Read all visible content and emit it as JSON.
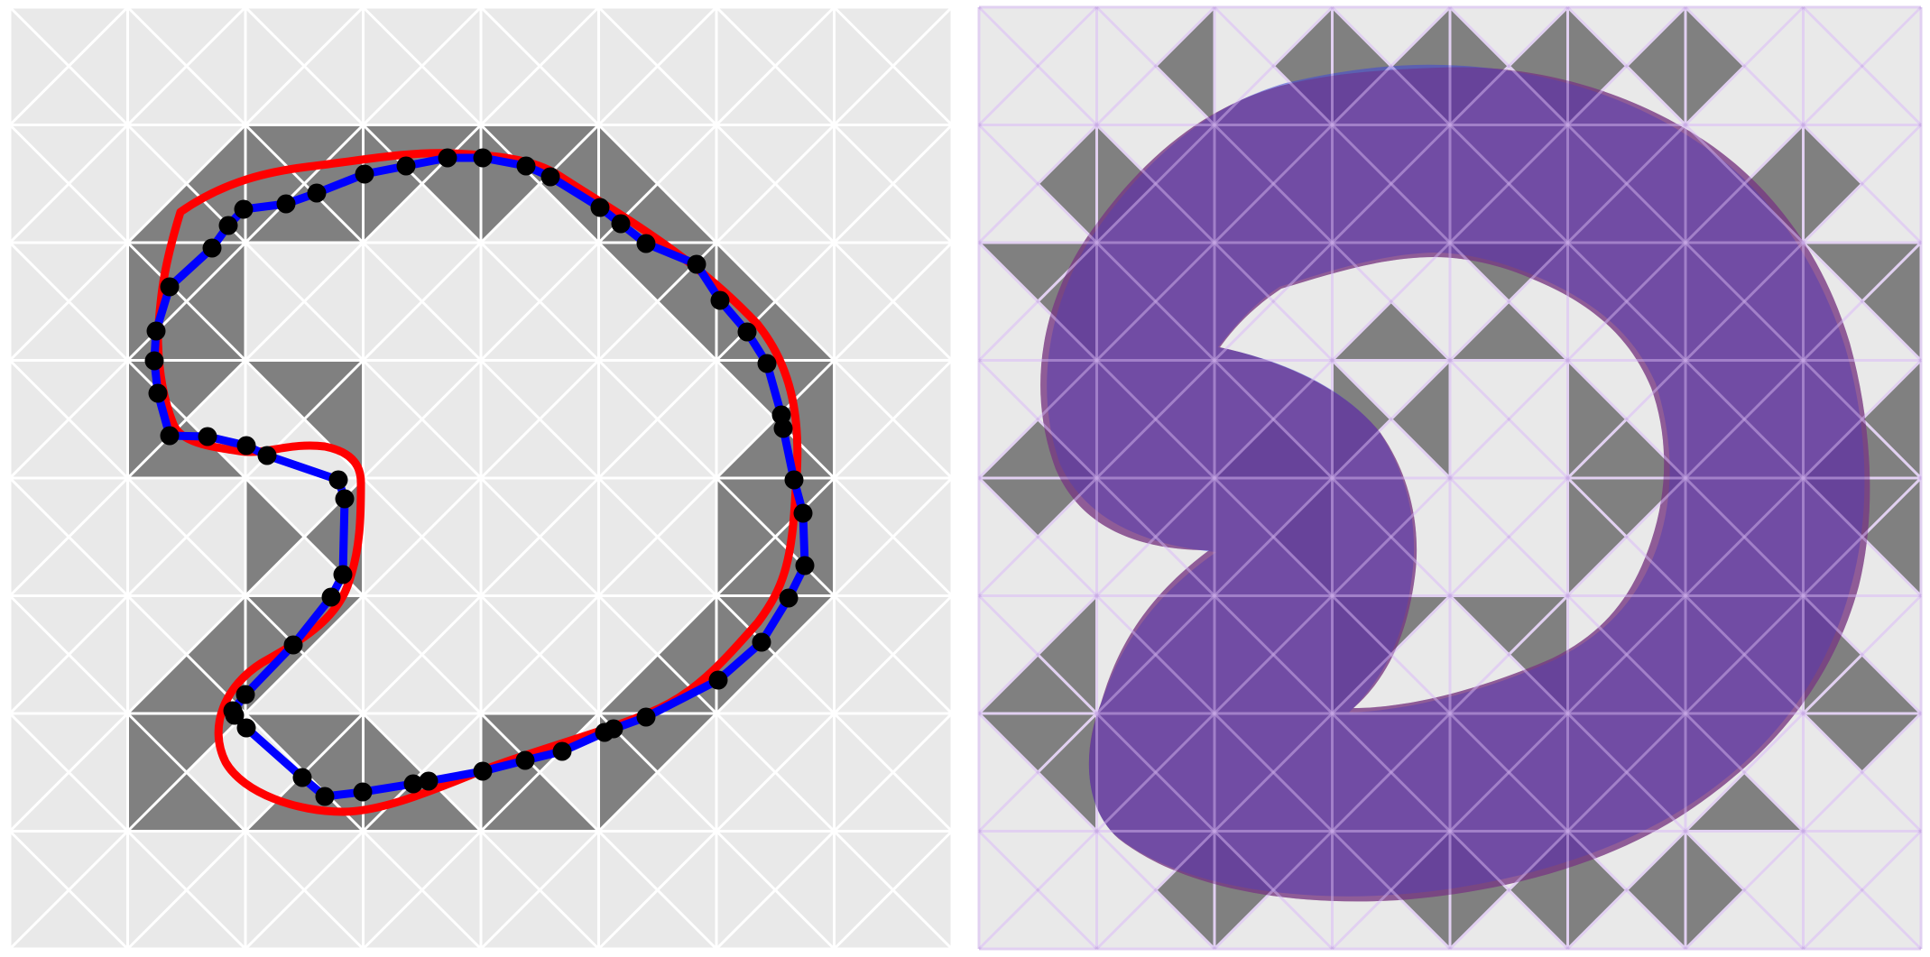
{
  "colors": {
    "background": "#ffffff",
    "cell_light": "#e9e9e9",
    "cell_dark": "#808080",
    "grid_line": "#ffffff",
    "grid_line_overlay": "#c9a9e6",
    "polyline": "#0000ff",
    "smooth_curve": "#ff0000",
    "vertex": "#000000",
    "region_red": "#8a2f6e",
    "region_blue": "#3e46d8",
    "region_purple": "#6f3d8d"
  },
  "grid": {
    "rows": 8,
    "cols": 8
  },
  "left_panel": {
    "name": "triangulated-grid-with-contour"
  },
  "right_panel": {
    "name": "triangulated-grid-with-filled-region"
  }
}
